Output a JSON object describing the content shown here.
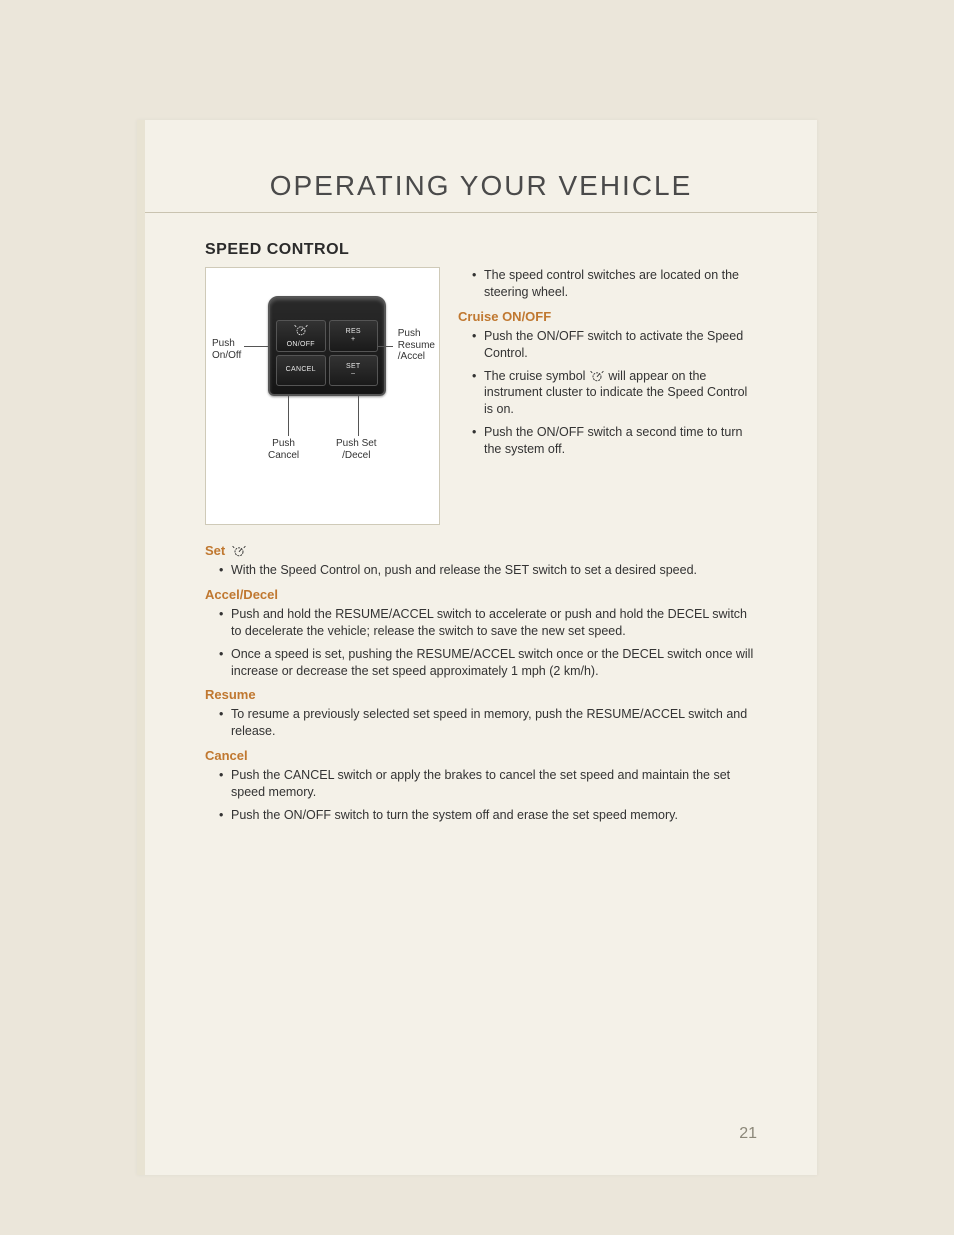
{
  "chapter_title": "OPERATING YOUR VEHICLE",
  "section_title": "SPEED CONTROL",
  "page_number": "21",
  "colors": {
    "page_bg": "#f4f1e8",
    "outer_bg": "#ebe6da",
    "subhead": "#c07830",
    "body_text": "#333333",
    "pagenum": "#8b8778"
  },
  "diagram": {
    "buttons": {
      "onoff": "ON/OFF",
      "res": "RES",
      "res_sub": "+",
      "cancel": "CANCEL",
      "set": "SET",
      "set_sub": "–"
    },
    "callouts": {
      "left": "Push\nOn/Off",
      "right": "Push\nResume\n/Accel",
      "bottom_left": "Push\nCancel",
      "bottom_right": "Push Set\n/Decel"
    }
  },
  "intro_bullets": [
    "The speed control switches are located on the steering wheel."
  ],
  "subsections": [
    {
      "heading": "Cruise ON/OFF",
      "has_icon": false,
      "bullets_html": [
        "Push the ON/OFF switch to activate the Speed Control.",
        "The cruise symbol {ICON} will appear on the instrument cluster to indicate the Speed Control is on.",
        "Push the ON/OFF switch a second time to turn the system off."
      ]
    }
  ],
  "lower_subsections": [
    {
      "heading": "Set",
      "has_icon": true,
      "bullets": [
        "With the Speed Control on, push and release the SET switch to set a desired speed."
      ]
    },
    {
      "heading": "Accel/Decel",
      "has_icon": false,
      "bullets": [
        "Push and hold the RESUME/ACCEL switch to accelerate or push and hold the DECEL switch to decelerate the vehicle; release the switch to save the new set speed.",
        "Once a speed is set, pushing the RESUME/ACCEL switch once or the DECEL switch once will increase or decrease the set speed approximately 1 mph (2 km/h)."
      ]
    },
    {
      "heading": "Resume",
      "has_icon": false,
      "bullets": [
        "To resume a previously selected set speed in memory, push the RESUME/ACCEL switch and release."
      ]
    },
    {
      "heading": "Cancel",
      "has_icon": false,
      "bullets": [
        "Push the CANCEL switch or apply the brakes to cancel the set speed and maintain the set speed memory.",
        "Push the ON/OFF switch to turn the system off and erase the set speed memory."
      ]
    }
  ]
}
